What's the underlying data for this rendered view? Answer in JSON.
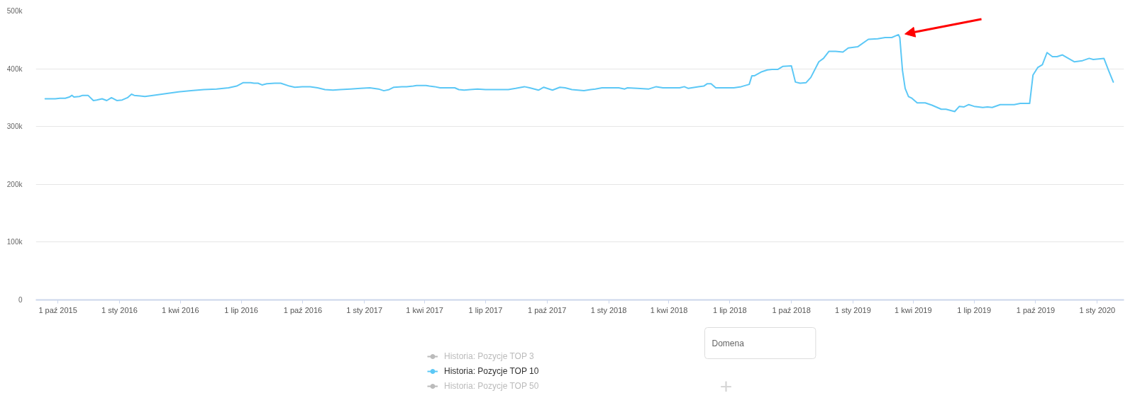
{
  "chart_data": {
    "type": "line",
    "x": [
      "2015-09-12",
      "2015-09-27",
      "2015-10-04",
      "2015-10-12",
      "2015-10-18",
      "2015-10-22",
      "2015-10-25",
      "2015-11-02",
      "2015-11-07",
      "2015-11-15",
      "2015-11-23",
      "2015-11-28",
      "2015-12-06",
      "2015-12-13",
      "2015-12-20",
      "2015-12-28",
      "2016-01-05",
      "2016-01-13",
      "2016-01-19",
      "2016-01-23",
      "2016-02-01",
      "2016-02-08",
      "2016-02-20",
      "2016-03-10",
      "2016-03-29",
      "2016-04-17",
      "2016-05-06",
      "2016-05-25",
      "2016-06-12",
      "2016-06-24",
      "2016-07-04",
      "2016-07-15",
      "2016-07-20",
      "2016-07-26",
      "2016-08-01",
      "2016-08-08",
      "2016-08-20",
      "2016-08-29",
      "2016-09-11",
      "2016-09-19",
      "2016-09-30",
      "2016-10-12",
      "2016-10-23",
      "2016-11-03",
      "2016-11-15",
      "2016-11-26",
      "2016-12-11",
      "2016-12-26",
      "2017-01-09",
      "2017-01-22",
      "2017-01-30",
      "2017-02-07",
      "2017-02-14",
      "2017-02-26",
      "2017-03-05",
      "2017-03-15",
      "2017-03-20",
      "2017-04-03",
      "2017-04-08",
      "2017-04-16",
      "2017-04-24",
      "2017-05-01",
      "2017-05-16",
      "2017-05-22",
      "2017-05-30",
      "2017-06-08",
      "2017-06-19",
      "2017-07-01",
      "2017-07-20",
      "2017-08-04",
      "2017-08-15",
      "2017-08-28",
      "2017-09-05",
      "2017-09-18",
      "2017-09-26",
      "2017-10-09",
      "2017-10-20",
      "2017-10-28",
      "2017-11-07",
      "2017-11-25",
      "2017-12-05",
      "2017-12-12",
      "2017-12-22",
      "2017-12-31",
      "2018-01-16",
      "2018-01-25",
      "2018-01-29",
      "2018-02-13",
      "2018-03-02",
      "2018-03-13",
      "2018-03-23",
      "2018-04-17",
      "2018-04-24",
      "2018-04-30",
      "2018-05-15",
      "2018-05-23",
      "2018-05-28",
      "2018-06-03",
      "2018-06-10",
      "2018-07-07",
      "2018-07-18",
      "2018-07-30",
      "2018-08-03",
      "2018-08-07",
      "2018-08-18",
      "2018-08-26",
      "2018-09-02",
      "2018-09-11",
      "2018-09-18",
      "2018-10-01",
      "2018-10-07",
      "2018-10-14",
      "2018-10-23",
      "2018-10-30",
      "2018-11-11",
      "2018-11-18",
      "2018-11-26",
      "2018-12-06",
      "2018-12-17",
      "2018-12-25",
      "2019-01-08",
      "2019-01-24",
      "2019-02-07",
      "2019-02-18",
      "2019-02-28",
      "2019-03-10",
      "2019-03-12",
      "2019-03-16",
      "2019-03-20",
      "2019-03-25",
      "2019-03-30",
      "2019-04-07",
      "2019-04-19",
      "2019-04-29",
      "2019-05-13",
      "2019-05-20",
      "2019-06-02",
      "2019-06-09",
      "2019-06-16",
      "2019-06-23",
      "2019-07-01",
      "2019-07-14",
      "2019-07-21",
      "2019-07-28",
      "2019-08-09",
      "2019-08-30",
      "2019-09-08",
      "2019-09-22",
      "2019-09-27",
      "2019-10-04",
      "2019-10-11",
      "2019-10-18",
      "2019-10-26",
      "2019-11-02",
      "2019-11-10",
      "2019-11-28",
      "2019-12-10",
      "2019-12-20",
      "2019-12-26",
      "2020-01-11",
      "2020-01-18",
      "2020-01-25"
    ],
    "series": [
      {
        "name": "Historia: Pozycje TOP 3",
        "color": "#bbbbbb",
        "values": [
          null,
          null,
          null,
          null,
          null,
          null,
          null,
          null,
          null,
          null,
          null,
          null,
          null,
          null,
          null,
          null,
          null,
          null,
          null,
          null,
          null,
          null,
          null,
          null,
          null,
          null,
          null,
          null,
          null,
          null,
          null,
          null,
          null,
          null,
          null,
          null,
          null,
          null,
          null,
          null,
          null,
          null,
          null,
          null,
          null,
          null,
          null,
          null,
          null,
          null,
          null,
          null,
          null,
          null,
          null,
          null,
          null,
          null,
          null,
          null,
          null,
          null,
          null,
          null,
          null,
          null,
          null,
          null,
          null,
          null,
          null,
          null,
          null,
          null,
          null,
          null,
          null,
          null,
          null,
          null,
          null,
          null,
          null,
          null,
          null,
          null,
          null,
          null,
          null,
          null,
          null,
          null,
          null,
          null,
          null,
          null,
          null,
          null,
          null,
          null,
          null,
          null,
          null,
          null,
          null,
          null,
          null,
          null,
          null,
          null,
          null,
          null,
          null,
          null,
          null,
          null,
          null,
          null,
          null,
          null,
          null,
          null,
          null,
          null,
          null,
          null,
          null,
          null,
          null,
          null,
          null,
          null,
          null,
          null,
          null,
          null,
          null,
          null,
          null,
          null,
          null,
          null,
          null,
          null,
          null,
          null,
          null,
          null,
          null,
          null,
          null,
          null,
          null,
          null,
          null,
          null,
          null,
          null,
          null,
          null,
          null,
          null
        ]
      },
      {
        "name": "Historia: Pozycje TOP 10",
        "color": "#5cc8f6",
        "values": [
          348000,
          348000,
          349000,
          349000,
          351000,
          354000,
          351000,
          352000,
          354000,
          354000,
          345000,
          346000,
          348000,
          345000,
          350000,
          345000,
          346000,
          350000,
          356000,
          354000,
          353000,
          352000,
          354000,
          357000,
          360000,
          362000,
          364000,
          365000,
          367000,
          370000,
          376000,
          376000,
          375000,
          375000,
          372000,
          374000,
          375000,
          375000,
          370000,
          368000,
          369000,
          369000,
          367000,
          364000,
          363000,
          364000,
          365000,
          366000,
          367000,
          365000,
          362000,
          364000,
          368000,
          369000,
          369000,
          370000,
          371000,
          371000,
          370000,
          369000,
          367000,
          367000,
          367000,
          364000,
          363000,
          364000,
          365000,
          364000,
          364000,
          364000,
          366000,
          369000,
          367000,
          363000,
          368000,
          363000,
          368000,
          367000,
          364000,
          362000,
          364000,
          365000,
          367000,
          367000,
          367000,
          365000,
          367000,
          366000,
          365000,
          369000,
          367000,
          367000,
          369000,
          366000,
          369000,
          370000,
          374000,
          374000,
          367000,
          367000,
          369000,
          373000,
          388000,
          388000,
          395000,
          398000,
          399000,
          399000,
          404000,
          405000,
          377000,
          375000,
          376000,
          385000,
          412000,
          418000,
          430000,
          430000,
          429000,
          436000,
          438000,
          451000,
          452000,
          454000,
          454000,
          459000,
          454000,
          397000,
          366000,
          352000,
          349000,
          341000,
          341000,
          337000,
          330000,
          330000,
          326000,
          335000,
          334000,
          338000,
          335000,
          333000,
          334000,
          333000,
          338000,
          338000,
          340000,
          340000,
          389000,
          402000,
          407000,
          428000,
          421000,
          421000,
          424000,
          412000,
          414000,
          418000,
          416000,
          418000,
          397000,
          377000
        ]
      },
      {
        "name": "Historia: Pozycje TOP 50",
        "color": "#bbbbbb",
        "values": [
          null,
          null,
          null,
          null,
          null,
          null,
          null,
          null,
          null,
          null,
          null,
          null,
          null,
          null,
          null,
          null,
          null,
          null,
          null,
          null,
          null,
          null,
          null,
          null,
          null,
          null,
          null,
          null,
          null,
          null,
          null,
          null,
          null,
          null,
          null,
          null,
          null,
          null,
          null,
          null,
          null,
          null,
          null,
          null,
          null,
          null,
          null,
          null,
          null,
          null,
          null,
          null,
          null,
          null,
          null,
          null,
          null,
          null,
          null,
          null,
          null,
          null,
          null,
          null,
          null,
          null,
          null,
          null,
          null,
          null,
          null,
          null,
          null,
          null,
          null,
          null,
          null,
          null,
          null,
          null,
          null,
          null,
          null,
          null,
          null,
          null,
          null,
          null,
          null,
          null,
          null,
          null,
          null,
          null,
          null,
          null,
          null,
          null,
          null,
          null,
          null,
          null,
          null,
          null,
          null,
          null,
          null,
          null,
          null,
          null,
          null,
          null,
          null,
          null,
          null,
          null,
          null,
          null,
          null,
          null,
          null,
          null,
          null,
          null,
          null,
          null,
          null,
          null,
          null,
          null,
          null,
          null,
          null,
          null,
          null,
          null,
          null,
          null,
          null,
          null,
          null,
          null,
          null,
          null,
          null,
          null,
          null,
          null,
          null,
          null,
          null,
          null,
          null,
          null,
          null,
          null,
          null,
          null,
          null,
          null,
          null,
          null
        ]
      }
    ],
    "xlim": [
      "2015-08-29",
      "2020-02-10"
    ],
    "xticks": [
      {
        "value": "2015-10-01",
        "label": "1 paź 2015"
      },
      {
        "value": "2016-01-01",
        "label": "1 sty 2016"
      },
      {
        "value": "2016-04-01",
        "label": "1 kwi 2016"
      },
      {
        "value": "2016-07-01",
        "label": "1 lip 2016"
      },
      {
        "value": "2016-10-01",
        "label": "1 paź 2016"
      },
      {
        "value": "2017-01-01",
        "label": "1 sty 2017"
      },
      {
        "value": "2017-04-01",
        "label": "1 kwi 2017"
      },
      {
        "value": "2017-07-01",
        "label": "1 lip 2017"
      },
      {
        "value": "2017-10-01",
        "label": "1 paź 2017"
      },
      {
        "value": "2018-01-01",
        "label": "1 sty 2018"
      },
      {
        "value": "2018-04-01",
        "label": "1 kwi 2018"
      },
      {
        "value": "2018-07-01",
        "label": "1 lip 2018"
      },
      {
        "value": "2018-10-01",
        "label": "1 paź 2018"
      },
      {
        "value": "2019-01-01",
        "label": "1 sty 2019"
      },
      {
        "value": "2019-04-01",
        "label": "1 kwi 2019"
      },
      {
        "value": "2019-07-01",
        "label": "1 lip 2019"
      },
      {
        "value": "2019-10-01",
        "label": "1 paź 2019"
      },
      {
        "value": "2020-01-01",
        "label": "1 sty 2020"
      }
    ],
    "ylim": [
      0,
      500000
    ],
    "yticks": [
      0,
      {
        "value": 100000,
        "label": "100k"
      },
      {
        "value": 200000,
        "label": "200k"
      },
      {
        "value": 300000,
        "label": "300k"
      },
      {
        "value": 400000,
        "label": "400k"
      },
      {
        "value": 500000,
        "label": "500k"
      }
    ],
    "grid": "y",
    "legend": "bottom",
    "annotations": [
      "Domena",
      "+"
    ]
  }
}
